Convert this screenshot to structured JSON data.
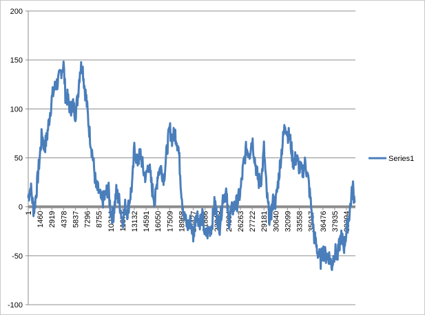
{
  "chart_data": {
    "type": "line",
    "title": "",
    "xlabel": "",
    "ylabel": "",
    "ylim": [
      -100,
      200
    ],
    "y_ticks": [
      200,
      150,
      100,
      50,
      0,
      -50,
      -100
    ],
    "x_range": [
      1,
      40500
    ],
    "x_tick_values": [
      1,
      1460,
      2919,
      4378,
      5837,
      7296,
      8755,
      10214,
      11673,
      13132,
      14591,
      16050,
      17509,
      18968,
      20427,
      21886,
      23345,
      24804,
      26263,
      27722,
      29181,
      30640,
      32099,
      33558,
      35017,
      36476,
      37935,
      39394
    ],
    "x_tick_labels": [
      "1",
      "1460",
      "2919",
      "4378",
      "5837",
      "7296",
      "8755",
      "10214",
      "11673",
      "13132",
      "14591",
      "16050",
      "17509",
      "18968",
      "20427",
      "21886",
      "23345",
      "24804",
      "26263",
      "27722",
      "29181",
      "30640",
      "32099",
      "33558",
      "35017",
      "36476",
      "37935",
      "39394"
    ],
    "grid": "horizontal",
    "legend": "right",
    "series": [
      {
        "name": "Series1",
        "color": "#4a7ebb",
        "x": [
          1,
          300,
          700,
          1000,
          1300,
          1700,
          2000,
          2300,
          2600,
          2919,
          3200,
          3500,
          3800,
          4100,
          4378,
          4600,
          4900,
          5200,
          5500,
          5837,
          6100,
          6400,
          6700,
          7000,
          7200,
          7296,
          7600,
          8000,
          8400,
          8755,
          9100,
          9500,
          9900,
          10214,
          10500,
          10900,
          11300,
          11673,
          12000,
          12300,
          12600,
          12900,
          13132,
          13500,
          13900,
          14300,
          14591,
          14900,
          15300,
          15700,
          16050,
          16400,
          16800,
          17200,
          17509,
          17800,
          18200,
          18600,
          18968,
          19300,
          19700,
          20100,
          20427,
          20800,
          21200,
          21600,
          21886,
          22300,
          22700,
          23100,
          23345,
          23700,
          24100,
          24500,
          24804,
          25100,
          25500,
          25900,
          26263,
          26600,
          27000,
          27400,
          27722,
          28100,
          28500,
          28900,
          29181,
          29500,
          29900,
          30300,
          30640,
          31000,
          31400,
          31800,
          32099,
          32400,
          32800,
          33200,
          33558,
          33900,
          34300,
          34700,
          35017,
          35400,
          35800,
          36200,
          36476,
          36800,
          37200,
          37600,
          37935,
          38300,
          38700,
          39100,
          39394,
          39700,
          40000,
          40200,
          40400
        ],
        "values": [
          10,
          20,
          -5,
          15,
          40,
          75,
          60,
          70,
          90,
          110,
          120,
          125,
          130,
          140,
          145,
          115,
          110,
          100,
          105,
          95,
          110,
          140,
          145,
          120,
          110,
          100,
          75,
          50,
          20,
          15,
          5,
          10,
          20,
          -5,
          -10,
          15,
          5,
          -15,
          0,
          -5,
          10,
          25,
          60,
          45,
          55,
          35,
          30,
          45,
          20,
          5,
          35,
          40,
          30,
          60,
          80,
          70,
          75,
          60,
          15,
          -10,
          -20,
          -15,
          -30,
          -5,
          -15,
          -10,
          -30,
          -25,
          -20,
          5,
          -10,
          -20,
          10,
          15,
          -15,
          -5,
          0,
          5,
          15,
          40,
          60,
          55,
          70,
          45,
          25,
          30,
          60,
          15,
          -15,
          5,
          5,
          30,
          60,
          85,
          75,
          70,
          45,
          50,
          40,
          35,
          45,
          25,
          0,
          -30,
          -45,
          -55,
          -45,
          -50,
          -50,
          -60,
          -45,
          -50,
          -30,
          -40,
          -25,
          -10,
          10,
          20,
          5
        ]
      }
    ]
  }
}
